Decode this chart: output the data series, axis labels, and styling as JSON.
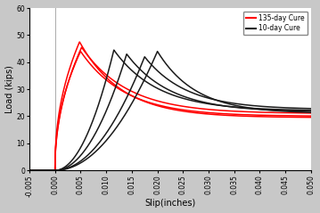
{
  "xlabel": "Slip(inches)",
  "ylabel": "Load (kips)",
  "xlim": [
    -0.005,
    0.05
  ],
  "ylim": [
    0,
    60
  ],
  "xticks": [
    -0.005,
    0.0,
    0.005,
    0.01,
    0.015,
    0.02,
    0.025,
    0.03,
    0.035,
    0.04,
    0.045,
    0.05
  ],
  "yticks": [
    0,
    10,
    20,
    30,
    40,
    50,
    60
  ],
  "red_color": "#FF0000",
  "black_color": "#1a1a1a",
  "legend_red": "135-day Cure",
  "legend_black": "10-day Cure",
  "red_curves": [
    {
      "peak_x": 0.0048,
      "peak_y": 47.5,
      "plateau_y": 19.5,
      "decay": 5.5,
      "rise_exp": 0.45
    },
    {
      "peak_x": 0.0052,
      "peak_y": 45.5,
      "plateau_y": 21.0,
      "decay": 5.0,
      "rise_exp": 0.48
    },
    {
      "peak_x": 0.005,
      "peak_y": 44.0,
      "plateau_y": 20.0,
      "decay": 5.2,
      "rise_exp": 0.46
    }
  ],
  "black_curves": [
    {
      "peak_x": 0.0115,
      "peak_y": 44.5,
      "plateau_y": 22.0,
      "decay": 4.5,
      "rise_exp": 2.0
    },
    {
      "peak_x": 0.014,
      "peak_y": 43.0,
      "plateau_y": 21.5,
      "decay": 4.2,
      "rise_exp": 2.0
    },
    {
      "peak_x": 0.0175,
      "peak_y": 42.0,
      "plateau_y": 22.5,
      "decay": 4.0,
      "rise_exp": 2.0
    },
    {
      "peak_x": 0.02,
      "peak_y": 44.0,
      "plateau_y": 21.0,
      "decay": 4.0,
      "rise_exp": 2.0
    }
  ],
  "background_color": "#ffffff",
  "figure_bg": "#c8c8c8",
  "lw": 1.1
}
